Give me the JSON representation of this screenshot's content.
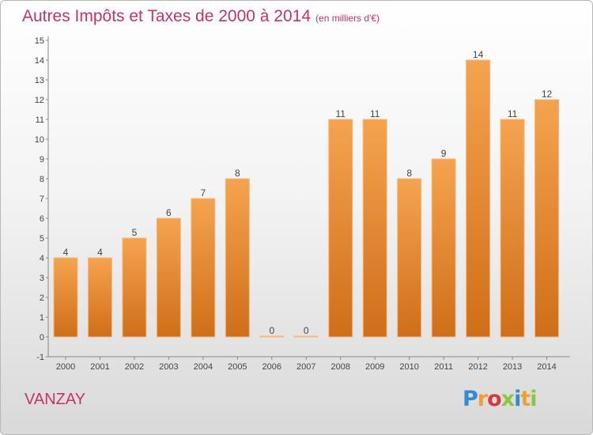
{
  "title": "Autres Impôts et Taxes de 2000 à 2014",
  "title_unit": "(en milliers d'€)",
  "commune": "VANZAY",
  "logo": {
    "letters": [
      "P",
      "r",
      "o",
      "x",
      "i",
      "t",
      "i"
    ],
    "colors": [
      "#2e8bd6",
      "#f0a030",
      "#d43a3a",
      "#8cc63f",
      "#2e8bd6",
      "#f0a030",
      "#8cc63f"
    ]
  },
  "chart_data": {
    "type": "bar",
    "categories": [
      "2000",
      "2001",
      "2002",
      "2003",
      "2004",
      "2005",
      "2006",
      "2007",
      "2008",
      "2009",
      "2010",
      "2011",
      "2012",
      "2013",
      "2014"
    ],
    "values": [
      4,
      4,
      5,
      6,
      7,
      8,
      0,
      0,
      11,
      11,
      8,
      9,
      14,
      11,
      12
    ],
    "data_labels": [
      "4",
      "4",
      "5",
      "6",
      "7",
      "8",
      "0",
      "0",
      "11",
      "11",
      "8",
      "9",
      "14",
      "11",
      "12"
    ],
    "yticks": [
      "-1",
      "0",
      "1",
      "2",
      "3",
      "4",
      "5",
      "6",
      "7",
      "8",
      "9",
      "10",
      "11",
      "12",
      "13",
      "14",
      "15"
    ],
    "ylim": [
      -1,
      15
    ],
    "grid": false,
    "bar_color": "#e8852e",
    "bar_color_light": "#f5a350",
    "bar_color_dark": "#d06e18"
  }
}
